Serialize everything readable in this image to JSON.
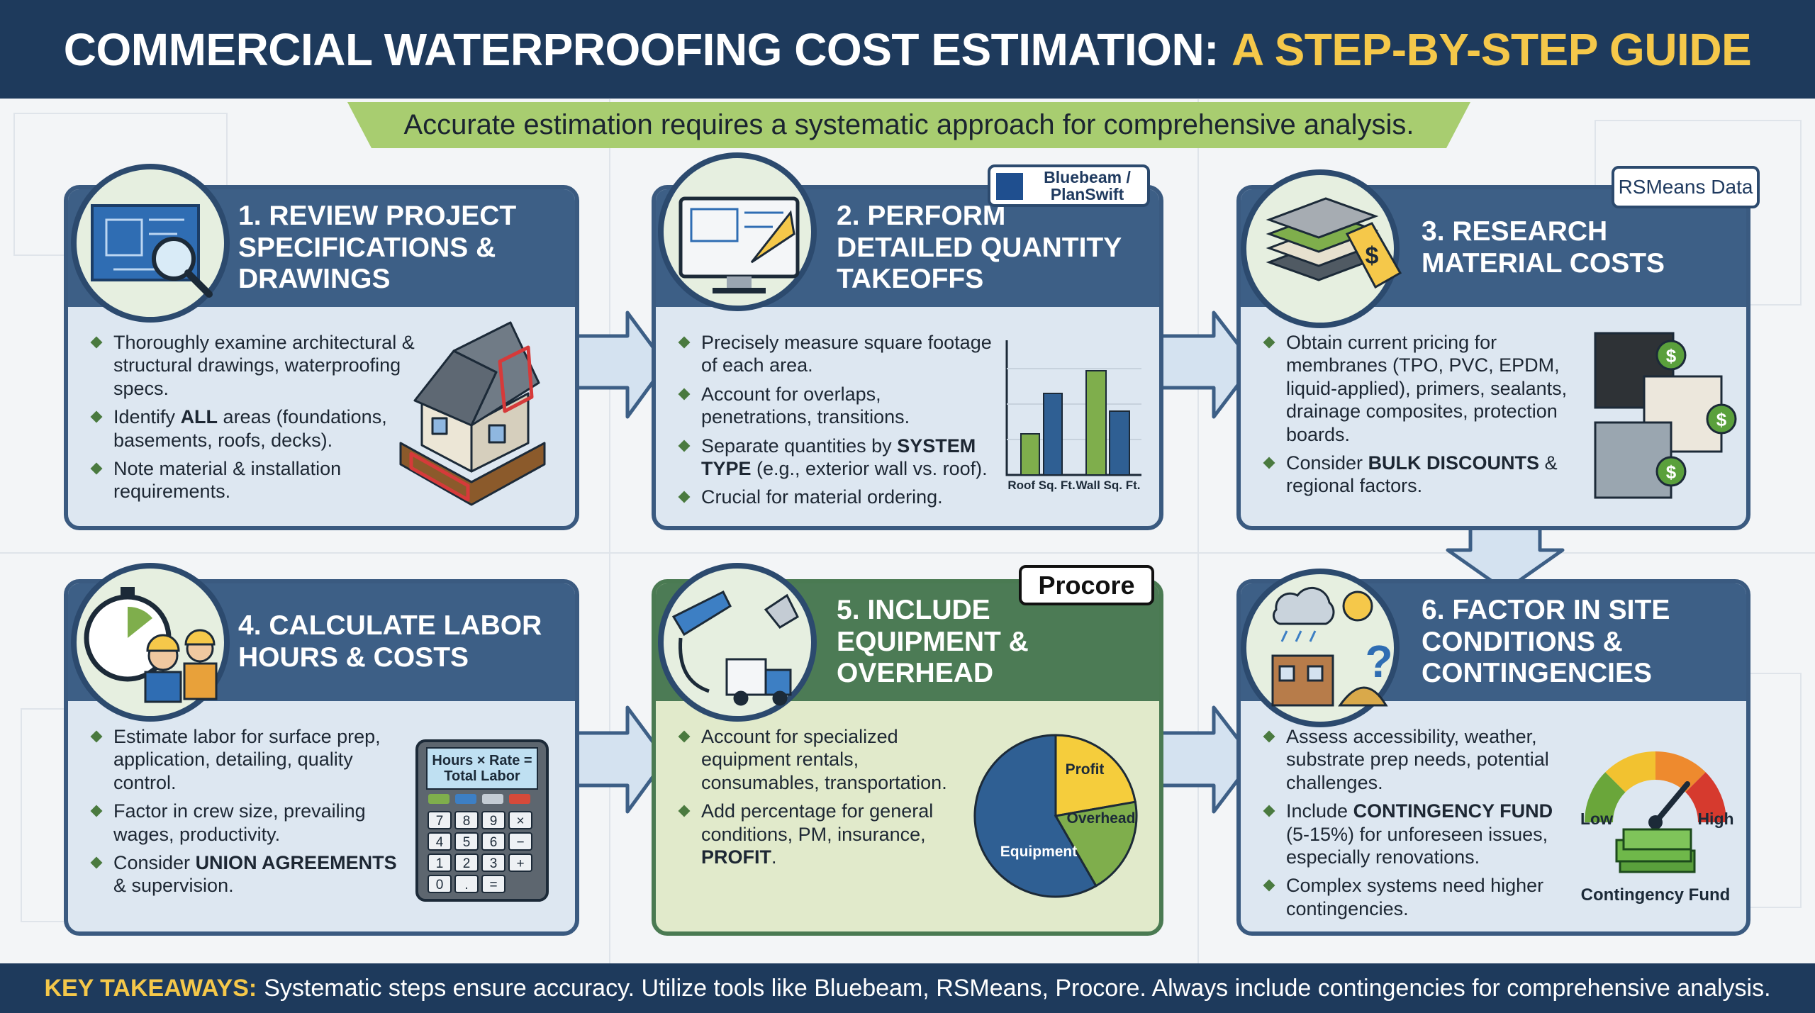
{
  "header": {
    "title_main": "COMMERCIAL WATERPROOFING COST ESTIMATION:",
    "title_accent": "A STEP-BY-STEP GUIDE"
  },
  "subtitle": "Accurate estimation requires a systematic approach for comprehensive analysis.",
  "steps": [
    {
      "title": "1. REVIEW PROJECT SPECIFICATIONS & DRAWINGS",
      "bullets": [
        [
          "Thoroughly examine architectural & structural drawings, waterproofing specs."
        ],
        [
          "Identify ",
          "ALL",
          " areas (foundations, basements, roofs, decks)."
        ],
        [
          "Note material & installation requirements."
        ]
      ]
    },
    {
      "title": "2. PERFORM DETAILED QUANTITY TAKEOFFS",
      "badge": "Bluebeam / PlanSwift",
      "chart_labels": [
        "Roof Sq. Ft.",
        "Wall Sq. Ft."
      ],
      "bullets": [
        [
          "Precisely measure square footage of each area."
        ],
        [
          "Account for overlaps, penetrations, transitions."
        ],
        [
          "Separate quantities by ",
          "SYSTEM TYPE",
          " (e.g., exterior wall vs. roof)."
        ],
        [
          "Crucial for material ordering."
        ]
      ]
    },
    {
      "title": "3. RESEARCH MATERIAL COSTS",
      "badge": "RSMeans Data",
      "price_symbol": "$",
      "bullets": [
        [
          "Obtain current pricing for membranes (TPO, PVC, EPDM, liquid-applied), primers, sealants, drainage composites, protection boards."
        ],
        [
          "Consider ",
          "BULK DISCOUNTS",
          " & regional factors."
        ]
      ]
    },
    {
      "title": "4. CALCULATE LABOR HOURS & COSTS",
      "calculator": {
        "display": "Hours × Rate = Total Labor",
        "keys": [
          "7",
          "8",
          "9",
          "×",
          "4",
          "5",
          "6",
          "−",
          "1",
          "2",
          "3",
          "+",
          "0",
          ".",
          "="
        ]
      },
      "bullets": [
        [
          "Estimate labor for surface prep, application, detailing, quality control."
        ],
        [
          "Factor in crew size, prevailing wages, productivity."
        ],
        [
          "Consider ",
          "UNION AGREEMENTS",
          " & supervision."
        ]
      ]
    },
    {
      "title": "5. INCLUDE EQUIPMENT & OVERHEAD",
      "badge": "Procore",
      "pie_labels": [
        "Profit",
        "Overhead",
        "Equipment"
      ],
      "bullets": [
        [
          "Account for specialized equipment rentals, consumables, transportation."
        ],
        [
          "Add percentage for general conditions, PM, insurance, ",
          "PROFIT",
          "."
        ]
      ]
    },
    {
      "title": "6. FACTOR IN SITE CONDITIONS & CONTINGENCIES",
      "icon_symbol": "?",
      "gauge": {
        "low": "Low",
        "high": "High",
        "caption": "Contingency Fund"
      },
      "bullets": [
        [
          "Assess accessibility, weather, substrate prep needs, potential challenges."
        ],
        [
          "Include ",
          "CONTINGENCY FUND",
          " (5-15%) for unforeseen issues, especially renovations."
        ],
        [
          "Complex systems need higher contingencies."
        ]
      ]
    }
  ],
  "footer": {
    "label": "KEY TAKEAWAYS:",
    "text": "Systematic steps ensure accuracy. Utilize tools like Bluebeam, RSMeans, Procore. Always include contingencies for comprehensive analysis."
  }
}
